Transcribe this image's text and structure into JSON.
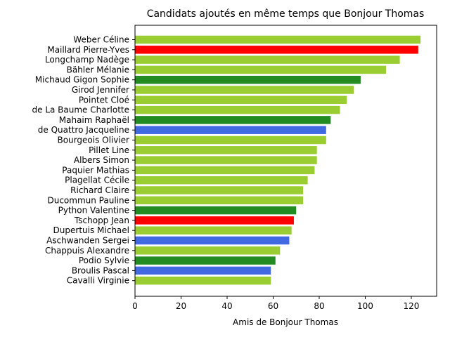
{
  "chart_data": {
    "type": "bar",
    "orientation": "horizontal",
    "title": "Candidats ajoutés en même temps que Bonjour Thomas",
    "xlabel": "Amis de Bonjour Thomas",
    "ylabel": "",
    "xlim": [
      0,
      131
    ],
    "xticks": [
      0,
      20,
      40,
      60,
      80,
      100,
      120
    ],
    "grid": false,
    "categories": [
      "Weber Céline",
      "Maillard Pierre-Yves",
      "Longchamp Nadège",
      "Bähler Mélanie",
      "Michaud Gigon Sophie",
      "Girod Jennifer",
      "Pointet Cloé",
      "de La Baume Charlotte",
      "Mahaim Raphaël",
      "de Quattro Jacqueline",
      "Bourgeois Olivier",
      "Pillet Line",
      "Albers Simon",
      "Paquier Mathias",
      "Plagellat Cécile",
      "Richard Claire",
      "Ducommun Pauline",
      "Python Valentine",
      "Tschopp Jean",
      "Dupertuis Michael",
      "Aschwanden Sergei",
      "Chappuis Alexandre",
      "Podio Sylvie",
      "Broulis Pascal",
      "Cavalli Virginie"
    ],
    "values": [
      124,
      123,
      115,
      109,
      98,
      95,
      92,
      89,
      85,
      83,
      83,
      79,
      79,
      78,
      75,
      73,
      73,
      70,
      69,
      68,
      67,
      63,
      61,
      59,
      59
    ],
    "colors": [
      "#9acd32",
      "#ff0000",
      "#9acd32",
      "#9acd32",
      "#228b22",
      "#9acd32",
      "#9acd32",
      "#9acd32",
      "#228b22",
      "#4169e1",
      "#9acd32",
      "#9acd32",
      "#9acd32",
      "#9acd32",
      "#9acd32",
      "#9acd32",
      "#9acd32",
      "#228b22",
      "#ff0000",
      "#9acd32",
      "#4169e1",
      "#9acd32",
      "#228b22",
      "#4169e1",
      "#9acd32"
    ]
  }
}
